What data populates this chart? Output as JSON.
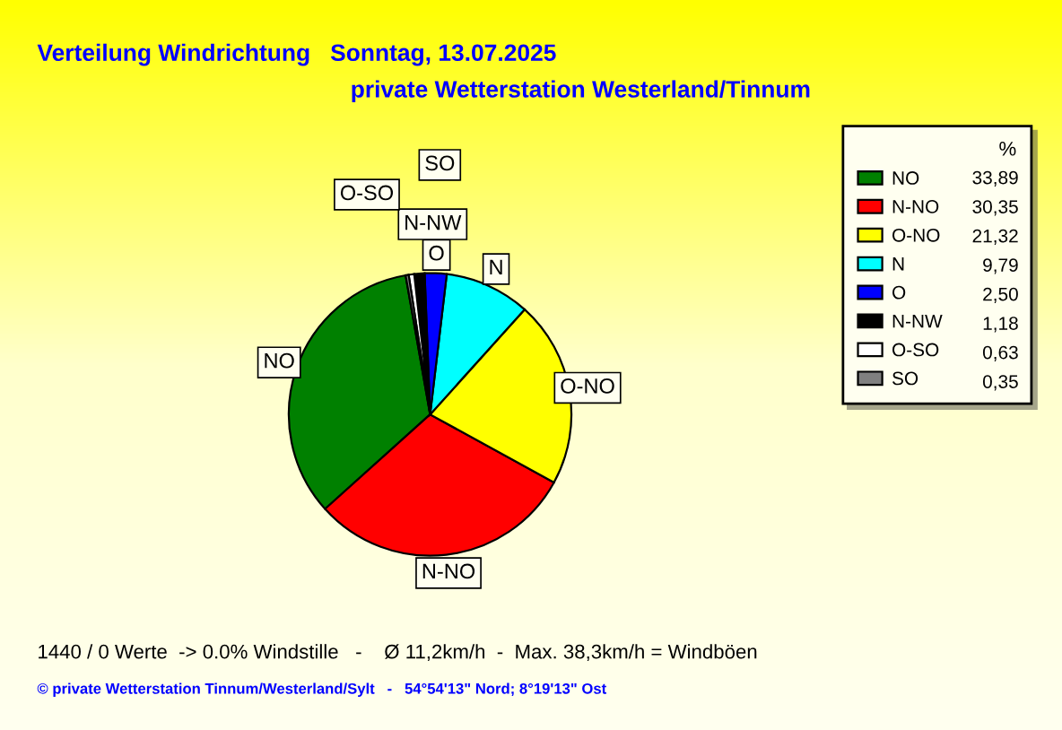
{
  "chart_data": {
    "type": "pie",
    "title": "Verteilung Windrichtung   Sonntag, 13.07.2025",
    "subtitle": "private Wetterstation Westerland/Tinnum",
    "categories": [
      "NO",
      "N-NO",
      "O-NO",
      "N",
      "O",
      "N-NW",
      "O-SO",
      "SO"
    ],
    "values": [
      33.89,
      30.35,
      21.32,
      9.79,
      2.5,
      1.18,
      0.63,
      0.35
    ],
    "colors": [
      "#008000",
      "#ff0000",
      "#ffff00",
      "#00ffff",
      "#0000ff",
      "#000000",
      "#ffffff",
      "#808080"
    ],
    "value_labels": [
      "33,89",
      "30,35",
      "21,32",
      "9,79",
      "2,50",
      "1,18",
      "0,63",
      "0,35"
    ],
    "legend_title": "%",
    "legend": "top right",
    "annotations": [
      "1440 / 0 Werte  -> 0.0% Windstille   -    Ø 11,2km/h  -  Max. 38,3km/h = Windböen",
      "© private Wetterstation Tinnum/Westerland/Sylt   -   54°54'13\" Nord; 8°19'13\" Ost"
    ]
  }
}
